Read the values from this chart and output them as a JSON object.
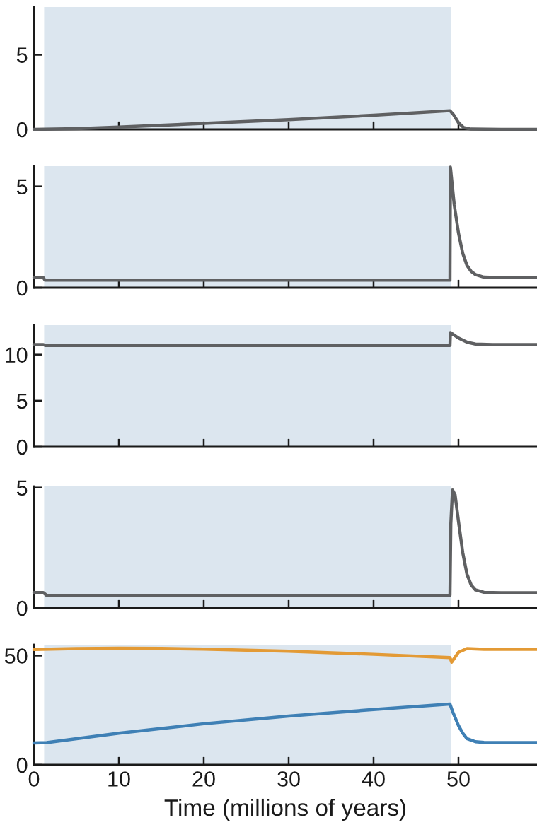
{
  "chart_data": [
    {
      "type": "line",
      "xlim": [
        0,
        59.25
      ],
      "xticks": [
        0,
        10,
        20,
        30,
        40,
        50
      ],
      "ylim": [
        0,
        8.2
      ],
      "yticks": [
        0,
        5
      ],
      "tick_labels": "y",
      "grid": false,
      "legend": false,
      "bands": [
        {
          "axis": "x",
          "from": 1.2,
          "to": 49.1,
          "color": "#dce6ef"
        }
      ],
      "series": [
        {
          "color": "#5f6062",
          "x": [
            0,
            5,
            10,
            20,
            30,
            40,
            49,
            49.4,
            50,
            50.6,
            51.5,
            55,
            59.25
          ],
          "values": [
            0,
            0.05,
            0.15,
            0.4,
            0.65,
            0.95,
            1.25,
            1.0,
            0.45,
            0.12,
            0.02,
            0,
            0
          ]
        }
      ]
    },
    {
      "type": "line",
      "xlim": [
        0,
        59.25
      ],
      "xticks": [
        0,
        10,
        20,
        30,
        40,
        50
      ],
      "ylim": [
        0,
        6.0
      ],
      "yticks": [
        0,
        5
      ],
      "tick_labels": "y",
      "grid": false,
      "legend": false,
      "bands": [
        {
          "axis": "x",
          "from": 1.2,
          "to": 49.1,
          "color": "#dce6ef"
        }
      ],
      "series": [
        {
          "color": "#5f6062",
          "x": [
            0,
            1.1,
            1.3,
            20,
            40,
            49,
            49.05,
            49.5,
            50,
            50.5,
            51,
            51.5,
            52,
            53,
            55,
            59.25
          ],
          "values": [
            0.5,
            0.5,
            0.37,
            0.37,
            0.37,
            0.37,
            5.95,
            4.1,
            2.7,
            1.7,
            1.1,
            0.8,
            0.65,
            0.52,
            0.5,
            0.5
          ]
        }
      ]
    },
    {
      "type": "line",
      "xlim": [
        0,
        59.25
      ],
      "xticks": [
        0,
        10,
        20,
        30,
        40,
        50
      ],
      "ylim": [
        0,
        13.2
      ],
      "yticks": [
        0,
        5,
        10
      ],
      "tick_labels": "y",
      "grid": false,
      "legend": false,
      "bands": [
        {
          "axis": "x",
          "from": 1.2,
          "to": 49.1,
          "color": "#dce6ef"
        }
      ],
      "series": [
        {
          "color": "#5f6062",
          "x": [
            0,
            1.1,
            1.3,
            20,
            40,
            49,
            49.05,
            50,
            51,
            52,
            54,
            59.25
          ],
          "values": [
            11.1,
            11.1,
            11.0,
            11.0,
            11.0,
            11.0,
            12.4,
            11.8,
            11.35,
            11.15,
            11.1,
            11.1
          ]
        }
      ]
    },
    {
      "type": "line",
      "xlim": [
        0,
        59.25
      ],
      "xticks": [
        0,
        10,
        20,
        30,
        40,
        50
      ],
      "ylim": [
        0,
        5.05
      ],
      "yticks": [
        0,
        5
      ],
      "tick_labels": "y",
      "grid": false,
      "legend": false,
      "bands": [
        {
          "axis": "x",
          "from": 1.2,
          "to": 49.1,
          "color": "#dce6ef"
        }
      ],
      "series": [
        {
          "color": "#5f6062",
          "x": [
            0,
            1.1,
            1.5,
            20,
            40,
            49,
            49.1,
            49.3,
            49.6,
            50,
            50.5,
            51,
            51.5,
            52,
            53,
            55,
            59.25
          ],
          "values": [
            0.64,
            0.64,
            0.52,
            0.52,
            0.52,
            0.52,
            3.5,
            4.9,
            4.7,
            3.6,
            2.3,
            1.4,
            0.95,
            0.75,
            0.65,
            0.63,
            0.63
          ]
        }
      ]
    },
    {
      "type": "line",
      "xlim": [
        0,
        59.25
      ],
      "xticks": [
        0,
        10,
        20,
        30,
        40,
        50
      ],
      "ylim": [
        0,
        55
      ],
      "yticks": [
        0,
        50
      ],
      "xlabel": "Time (millions of years)",
      "grid": false,
      "legend": false,
      "bands": [
        {
          "axis": "x",
          "from": 1.2,
          "to": 49.1,
          "color": "#dce6ef"
        }
      ],
      "series": [
        {
          "color": "#e39a35",
          "x": [
            0,
            5,
            10,
            15,
            20,
            30,
            40,
            49,
            49.2,
            50,
            51,
            53,
            59.25
          ],
          "values": [
            52.8,
            53.2,
            53.4,
            53.3,
            53.0,
            52.0,
            50.6,
            49.1,
            47.0,
            51.5,
            53.2,
            52.9,
            52.9
          ]
        },
        {
          "color": "#3f80b5",
          "x": [
            0,
            1.5,
            10,
            20,
            30,
            40,
            49,
            49.3,
            50,
            50.5,
            51,
            52,
            53,
            55,
            59.25
          ],
          "values": [
            10.0,
            10.2,
            14.5,
            18.8,
            22.3,
            25.3,
            27.8,
            24.5,
            18.0,
            14.5,
            12.0,
            10.6,
            10.3,
            10.2,
            10.2
          ]
        }
      ]
    }
  ]
}
